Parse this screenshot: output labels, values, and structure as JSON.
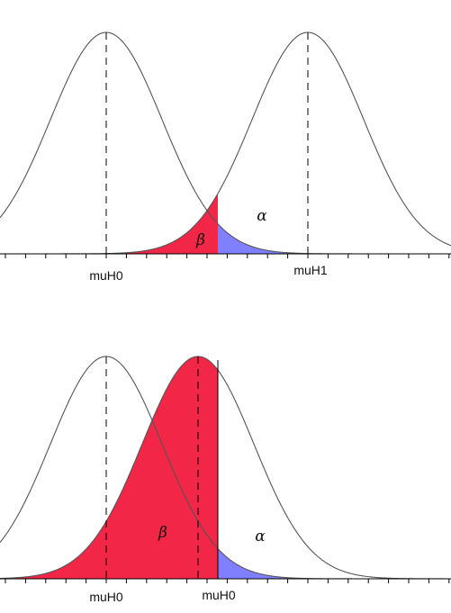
{
  "colors": {
    "beta_fill": "#f22646",
    "alpha_fill": "#8080ff",
    "curve_stroke": "#555555",
    "background": "#ffffff"
  },
  "panels": [
    {
      "mean_labels": [
        "muH0",
        "muH1"
      ],
      "region_labels": {
        "beta": "β",
        "alpha": "α"
      }
    },
    {
      "mean_labels": [
        "muH0",
        "muH0"
      ],
      "region_labels": {
        "beta": "β",
        "alpha": "α"
      }
    }
  ]
}
